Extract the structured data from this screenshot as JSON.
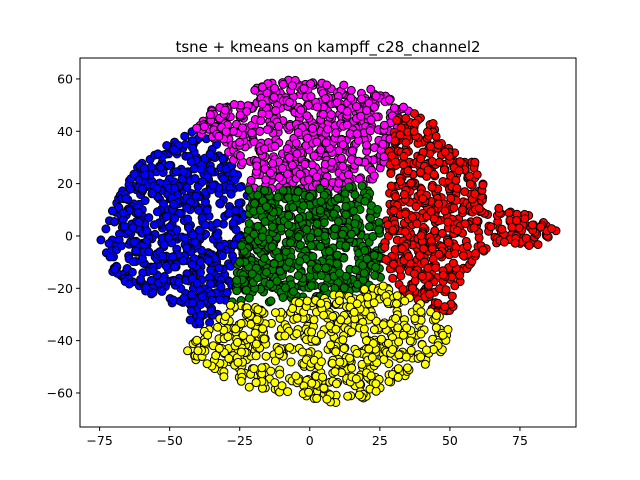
{
  "chart_data": {
    "type": "scatter",
    "title": "tsne + kmeans on kampff_c28_channel2",
    "xlabel": "",
    "ylabel": "",
    "xlim": [
      -82,
      95
    ],
    "ylim": [
      -73,
      68
    ],
    "xticks": [
      -75,
      -50,
      -25,
      0,
      25,
      50,
      75
    ],
    "yticks": [
      -60,
      -40,
      -20,
      0,
      20,
      40,
      60
    ],
    "xtick_labels": [
      "−75",
      "−50",
      "−25",
      "0",
      "25",
      "50",
      "75"
    ],
    "ytick_labels": [
      "−60",
      "−40",
      "−20",
      "0",
      "20",
      "40",
      "60"
    ],
    "marker_edge_color": "#000000",
    "clusters": [
      {
        "color": "#0000ff",
        "centroid": [
          -50,
          0
        ],
        "hull": [
          [
            -72,
            5
          ],
          [
            -68,
            18
          ],
          [
            -62,
            26
          ],
          [
            -55,
            32
          ],
          [
            -48,
            38
          ],
          [
            -42,
            41
          ],
          [
            -36,
            38
          ],
          [
            -30,
            32
          ],
          [
            -26,
            26
          ],
          [
            -22,
            18
          ],
          [
            -24,
            0
          ],
          [
            -28,
            -20
          ],
          [
            -34,
            -34
          ],
          [
            -40,
            -35
          ],
          [
            -48,
            -27
          ],
          [
            -58,
            -22
          ],
          [
            -68,
            -18
          ],
          [
            -74,
            -8
          ],
          [
            -75,
            0
          ]
        ]
      },
      {
        "color": "#ff00ff",
        "centroid": [
          0,
          38
        ],
        "hull": [
          [
            -42,
            40
          ],
          [
            -36,
            48
          ],
          [
            -26,
            52
          ],
          [
            -18,
            58
          ],
          [
            -8,
            60
          ],
          [
            2,
            59
          ],
          [
            12,
            58
          ],
          [
            22,
            56
          ],
          [
            30,
            52
          ],
          [
            36,
            48
          ],
          [
            34,
            42
          ],
          [
            28,
            30
          ],
          [
            22,
            20
          ],
          [
            10,
            18
          ],
          [
            0,
            18
          ],
          [
            -10,
            18
          ],
          [
            -22,
            18
          ],
          [
            -26,
            26
          ],
          [
            -30,
            32
          ],
          [
            -36,
            38
          ]
        ]
      },
      {
        "color": "#008000",
        "centroid": [
          0,
          0
        ],
        "hull": [
          [
            -22,
            18
          ],
          [
            -10,
            18
          ],
          [
            0,
            18
          ],
          [
            10,
            18
          ],
          [
            20,
            20
          ],
          [
            24,
            12
          ],
          [
            26,
            0
          ],
          [
            26,
            -16
          ],
          [
            20,
            -20
          ],
          [
            10,
            -22
          ],
          [
            -5,
            -25
          ],
          [
            -18,
            -26
          ],
          [
            -28,
            -26
          ],
          [
            -26,
            -12
          ],
          [
            -24,
            0
          ]
        ]
      },
      {
        "color": "#ff0000",
        "centroid": [
          45,
          5
        ],
        "hull": [
          [
            30,
            44
          ],
          [
            36,
            48
          ],
          [
            42,
            47
          ],
          [
            48,
            40
          ],
          [
            54,
            32
          ],
          [
            60,
            30
          ],
          [
            62,
            22
          ],
          [
            62,
            12
          ],
          [
            70,
            10
          ],
          [
            78,
            8
          ],
          [
            86,
            6
          ],
          [
            88,
            2
          ],
          [
            84,
            -4
          ],
          [
            76,
            -4
          ],
          [
            68,
            -2
          ],
          [
            62,
            -6
          ],
          [
            58,
            -10
          ],
          [
            54,
            -20
          ],
          [
            52,
            -28
          ],
          [
            46,
            -30
          ],
          [
            40,
            -26
          ],
          [
            34,
            -22
          ],
          [
            28,
            -16
          ],
          [
            26,
            -2
          ],
          [
            28,
            10
          ],
          [
            28,
            30
          ]
        ]
      },
      {
        "color": "#ffff00",
        "centroid": [
          5,
          -42
        ],
        "hull": [
          [
            -28,
            -26
          ],
          [
            -18,
            -26
          ],
          [
            -5,
            -25
          ],
          [
            10,
            -22
          ],
          [
            20,
            -20
          ],
          [
            28,
            -16
          ],
          [
            34,
            -22
          ],
          [
            40,
            -26
          ],
          [
            46,
            -30
          ],
          [
            50,
            -36
          ],
          [
            48,
            -44
          ],
          [
            40,
            -50
          ],
          [
            30,
            -56
          ],
          [
            20,
            -62
          ],
          [
            10,
            -64
          ],
          [
            0,
            -63
          ],
          [
            -10,
            -60
          ],
          [
            -22,
            -58
          ],
          [
            -32,
            -54
          ],
          [
            -40,
            -48
          ],
          [
            -44,
            -44
          ],
          [
            -40,
            -38
          ],
          [
            -34,
            -34
          ]
        ]
      }
    ]
  }
}
